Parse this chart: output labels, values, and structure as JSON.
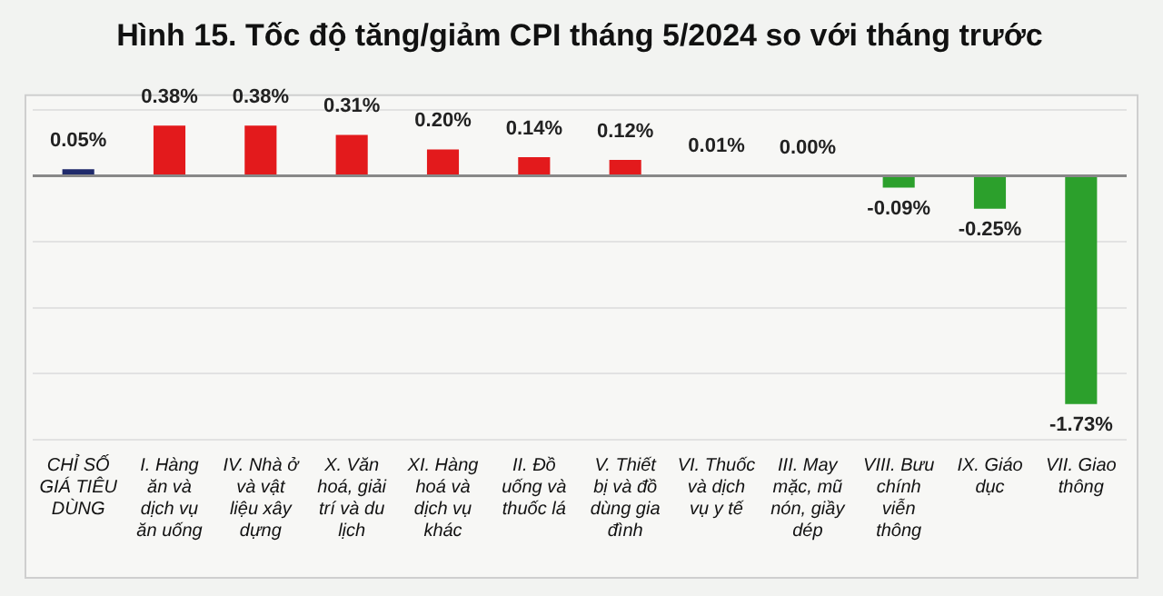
{
  "chart_data": {
    "type": "bar",
    "title": "Hình 15. Tốc độ tăng/giảm CPI tháng 5/2024 so với tháng trước",
    "categories": [
      "CHỈ SỐ GIÁ TIÊU DÙNG",
      "I. Hàng ăn và dịch vụ ăn uống",
      "IV. Nhà ở và vật liệu xây dựng",
      "X. Văn hoá, giải trí và du lịch",
      "XI. Hàng hoá và dịch vụ khác",
      "II. Đồ uống và thuốc lá",
      "V. Thiết bị và đồ dùng gia đình",
      "VI. Thuốc và dịch vụ y tế",
      "III. May mặc, mũ nón, giầy dép",
      "VIII. Bưu chính viễn thông",
      "IX. Giáo dục",
      "VII. Giao thông"
    ],
    "values": [
      0.05,
      0.38,
      0.38,
      0.31,
      0.2,
      0.14,
      0.12,
      0.01,
      0.0,
      -0.09,
      -0.25,
      -1.73
    ],
    "value_labels": [
      "0.05%",
      "0.38%",
      "0.38%",
      "0.31%",
      "0.20%",
      "0.14%",
      "0.12%",
      "0.01%",
      "0.00%",
      "-0.09%",
      "-0.25%",
      "-1.73%"
    ],
    "colors": [
      "#1f2a6b",
      "#e31a1c",
      "#e31a1c",
      "#e31a1c",
      "#e31a1c",
      "#e31a1c",
      "#e31a1c",
      "#1f2a6b",
      "#1f2a6b",
      "#2ca02c",
      "#2ca02c",
      "#2ca02c"
    ],
    "ylim": [
      -2,
      0.5
    ],
    "yticks": [
      {
        "value": -2,
        "label": null
      },
      {
        "value": -1.5,
        "label": null
      },
      {
        "value": -1,
        "label": null
      },
      {
        "value": -0.5,
        "label": null
      },
      {
        "value": 0,
        "label": null
      },
      {
        "value": 0.5,
        "label": null
      }
    ],
    "grid": "y",
    "legend": false,
    "tick_labels": "x"
  }
}
